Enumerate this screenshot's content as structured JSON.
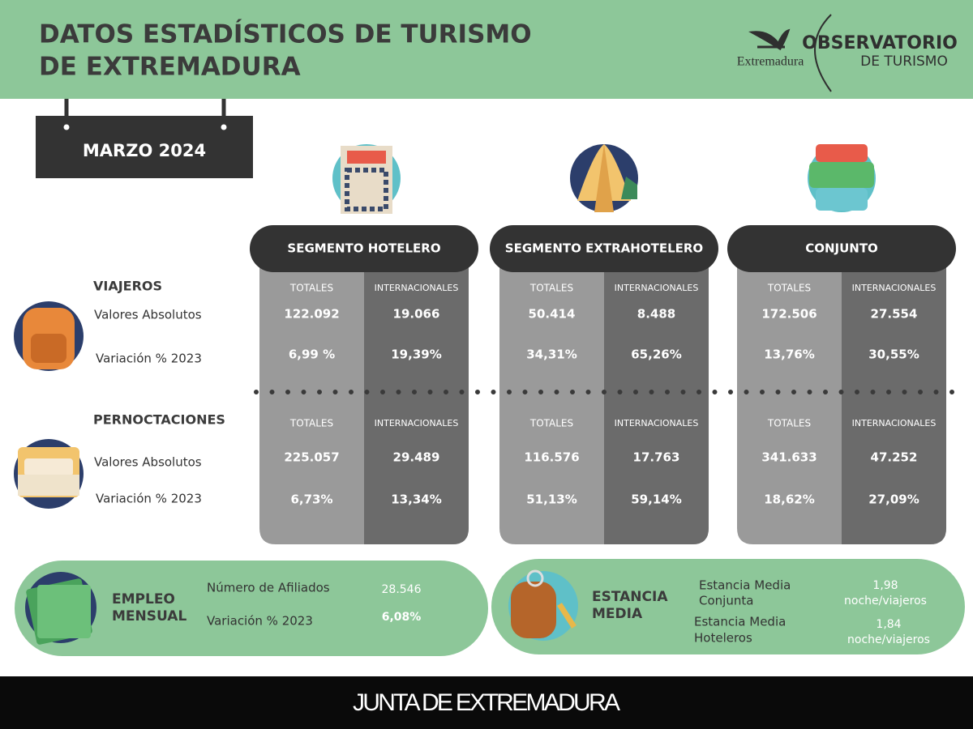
{
  "header": {
    "title": [
      "DATOS ESTADÍSTICOS DE TURISMO",
      "DE EXTREMADURA"
    ],
    "logo_left": "Extremadura",
    "logo_right": [
      "OBSERVATORIO",
      "DE TURISMO"
    ]
  },
  "period": "MARZO 2024",
  "sections": {
    "viajeros": {
      "label": "VIAJEROS",
      "absolutos_label": "Valores Absolutos",
      "variacion_label": "Variación % 2023"
    },
    "pernoctaciones": {
      "label": "PERNOCTACIONES",
      "absolutos_label": "Valores Absolutos",
      "variacion_label": "Variación % 2023"
    }
  },
  "segments": [
    {
      "title": "SEGMENTO HOTELERO",
      "viajeros": {
        "headers": [
          "TOTALES",
          "INTERNACIONALES"
        ],
        "absolutos": [
          "122.092",
          "19.066"
        ],
        "variacion": [
          "6,99 %",
          "19,39%"
        ]
      },
      "pernoctaciones": {
        "headers": [
          "TOTALES",
          "INTERNACIONALES"
        ],
        "absolutos": [
          "225.057",
          "29.489"
        ],
        "variacion": [
          "6,73%",
          "13,34%"
        ]
      }
    },
    {
      "title": "SEGMENTO EXTRAHOTELERO",
      "viajeros": {
        "headers": [
          "TOTALES",
          "INTERNACIONALES"
        ],
        "absolutos": [
          "50.414",
          "8.488"
        ],
        "variacion": [
          "34,31%",
          "65,26%"
        ]
      },
      "pernoctaciones": {
        "headers": [
          "TOTALES",
          "INTERNACIONALES"
        ],
        "absolutos": [
          "116.576",
          "17.763"
        ],
        "variacion": [
          "51,13%",
          "59,14%"
        ]
      }
    },
    {
      "title": "CONJUNTO",
      "viajeros": {
        "headers": [
          "TOTALES",
          "INTERNACIONALES"
        ],
        "absolutos": [
          "172.506",
          "27.554"
        ],
        "variacion": [
          "13,76%",
          "30,55%"
        ]
      },
      "pernoctaciones": {
        "headers": [
          "TOTALES",
          "INTERNACIONALES"
        ],
        "absolutos": [
          "341.633",
          "47.252"
        ],
        "variacion": [
          "18,62%",
          "27,09%"
        ]
      }
    }
  ],
  "empleo": {
    "title": [
      "EMPLEO",
      "MENSUAL"
    ],
    "rows": [
      {
        "label": "Número de Afiliados",
        "value": "28.546"
      },
      {
        "label": "Variación % 2023",
        "value": "6,08%"
      }
    ]
  },
  "estancia": {
    "title": [
      "ESTANCIA",
      "MEDIA"
    ],
    "rows": [
      {
        "label": [
          "Estancia Media",
          "Conjunta"
        ],
        "value": [
          "1,98",
          "noche/viajeros"
        ]
      },
      {
        "label": [
          "Estancia Media",
          "Hoteleros"
        ],
        "value": [
          "1,84",
          "noche/viajeros"
        ]
      }
    ]
  },
  "footer": "JUNTA DE EXTREMADURA"
}
